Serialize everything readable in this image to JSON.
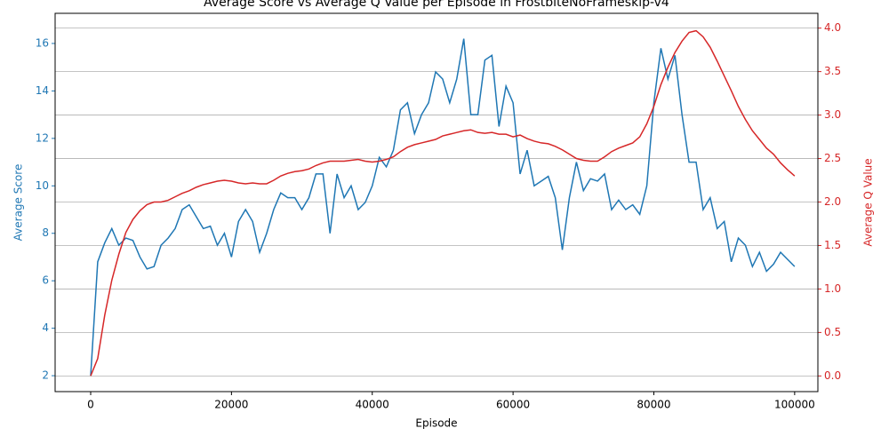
{
  "chart_data": {
    "type": "line",
    "title": "Average Score vs Average Q Value per Episode in FrostbiteNoFrameskip-v4",
    "x_label": "Episode",
    "y_label": "Average Score",
    "y2_label": "Average Q Value",
    "x": [
      0,
      1000,
      2000,
      3000,
      4000,
      5000,
      6000,
      7000,
      8000,
      9000,
      10000,
      11000,
      12000,
      13000,
      14000,
      15000,
      16000,
      17000,
      18000,
      19000,
      20000,
      21000,
      22000,
      23000,
      24000,
      25000,
      26000,
      27000,
      28000,
      29000,
      30000,
      31000,
      32000,
      33000,
      34000,
      35000,
      36000,
      37000,
      38000,
      39000,
      40000,
      41000,
      42000,
      43000,
      44000,
      45000,
      46000,
      47000,
      48000,
      49000,
      50000,
      51000,
      52000,
      53000,
      54000,
      55000,
      56000,
      57000,
      58000,
      59000,
      60000,
      61000,
      62000,
      63000,
      64000,
      65000,
      66000,
      67000,
      68000,
      69000,
      70000,
      71000,
      72000,
      73000,
      74000,
      75000,
      76000,
      77000,
      78000,
      79000,
      80000,
      81000,
      82000,
      83000,
      84000,
      85000,
      86000,
      87000,
      88000,
      89000,
      90000,
      91000,
      92000,
      93000,
      94000,
      95000,
      96000,
      97000,
      98000,
      99000,
      100000
    ],
    "series": [
      {
        "color": "#1f77b4",
        "axis": "y",
        "values": [
          2.0,
          6.8,
          7.6,
          8.2,
          7.5,
          7.8,
          7.7,
          7.0,
          6.5,
          6.6,
          7.5,
          7.8,
          8.2,
          9.0,
          9.2,
          8.7,
          8.2,
          8.3,
          7.5,
          8.0,
          7.0,
          8.5,
          9.0,
          8.5,
          7.2,
          8.0,
          9.0,
          9.7,
          9.5,
          9.5,
          9.0,
          9.5,
          10.5,
          10.5,
          8.0,
          10.5,
          9.5,
          10.0,
          9.0,
          9.3,
          10.0,
          11.2,
          10.8,
          11.5,
          13.2,
          13.5,
          12.2,
          13.0,
          13.5,
          14.8,
          14.5,
          13.5,
          14.5,
          16.2,
          13.0,
          13.0,
          15.3,
          15.5,
          12.5,
          14.2,
          13.5,
          10.5,
          11.5,
          10.0,
          10.2,
          10.4,
          9.5,
          7.3,
          9.5,
          11.0,
          9.8,
          10.3,
          10.2,
          10.5,
          9.0,
          9.4,
          9.0,
          9.2,
          8.8,
          10.0,
          13.5,
          15.8,
          14.5,
          15.5,
          13.0,
          11.0,
          11.0,
          9.0,
          9.5,
          8.2,
          8.5,
          6.8,
          7.8,
          7.5,
          6.6,
          7.2,
          6.4,
          6.7,
          7.2,
          6.9,
          6.6
        ]
      },
      {
        "color": "#d62728",
        "axis": "y2",
        "values": [
          0.0,
          0.2,
          0.7,
          1.1,
          1.4,
          1.65,
          1.8,
          1.9,
          1.97,
          2.0,
          2.0,
          2.02,
          2.06,
          2.1,
          2.13,
          2.17,
          2.2,
          2.22,
          2.24,
          2.25,
          2.24,
          2.22,
          2.21,
          2.22,
          2.21,
          2.21,
          2.25,
          2.3,
          2.33,
          2.35,
          2.36,
          2.38,
          2.42,
          2.45,
          2.47,
          2.47,
          2.47,
          2.48,
          2.49,
          2.47,
          2.46,
          2.47,
          2.49,
          2.52,
          2.58,
          2.63,
          2.66,
          2.68,
          2.7,
          2.72,
          2.76,
          2.78,
          2.8,
          2.82,
          2.83,
          2.8,
          2.79,
          2.8,
          2.78,
          2.78,
          2.75,
          2.77,
          2.73,
          2.7,
          2.68,
          2.67,
          2.64,
          2.6,
          2.55,
          2.5,
          2.48,
          2.47,
          2.47,
          2.52,
          2.58,
          2.62,
          2.65,
          2.68,
          2.75,
          2.9,
          3.1,
          3.35,
          3.55,
          3.72,
          3.85,
          3.95,
          3.97,
          3.9,
          3.78,
          3.62,
          3.45,
          3.28,
          3.1,
          2.95,
          2.82,
          2.72,
          2.62,
          2.55,
          2.45,
          2.37,
          2.3
        ]
      }
    ],
    "xlim": [
      -5050,
      103300
    ],
    "xticks": [
      0,
      20000,
      40000,
      60000,
      80000,
      100000
    ],
    "ylim": [
      1.33,
      17.27
    ],
    "yticks": [
      2,
      4,
      6,
      8,
      10,
      12,
      14,
      16
    ],
    "y2lim": [
      -0.18,
      4.17
    ],
    "y2ticks": [
      {
        "value": 0,
        "label": "0.0"
      },
      0.5,
      {
        "value": 1,
        "label": "1.0"
      },
      1.5,
      {
        "value": 2,
        "label": "2.0"
      },
      2.5,
      {
        "value": 3,
        "label": "3.0"
      },
      3.5,
      {
        "value": 4,
        "label": "4.0"
      }
    ],
    "grid": "y2"
  }
}
